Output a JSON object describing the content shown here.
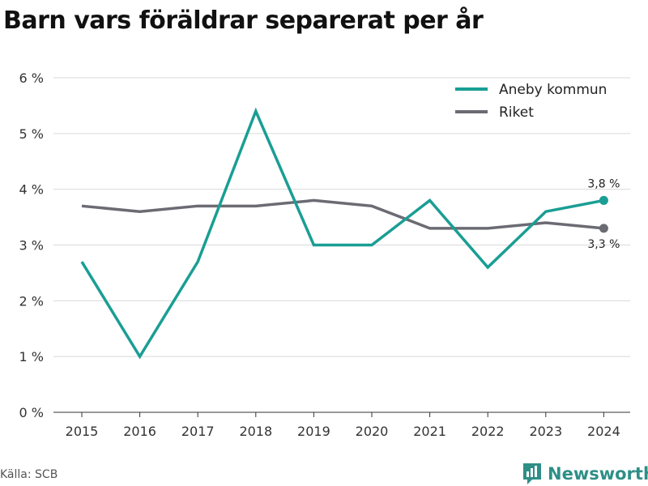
{
  "title": "Barn vars föräldrar separerat per år",
  "source": "Källa: SCB",
  "brand": "Newsworthy",
  "colors": {
    "aneby": "#1a9e94",
    "riket": "#6b6b73",
    "grid": "#d9d9d9",
    "brand": "#2e8f87"
  },
  "chart_data": {
    "type": "line",
    "x": [
      "2015",
      "2016",
      "2017",
      "2018",
      "2019",
      "2020",
      "2021",
      "2022",
      "2023",
      "2024"
    ],
    "ylim": [
      0,
      6
    ],
    "yticks": [
      "0 %",
      "1 %",
      "2 %",
      "3 %",
      "4 %",
      "5 %",
      "6 %"
    ],
    "legend_position": "top-right",
    "grid": true,
    "series": [
      {
        "name": "Aneby kommun",
        "values": [
          2.7,
          1.0,
          2.7,
          5.4,
          3.0,
          3.0,
          3.8,
          2.6,
          3.6,
          3.8
        ],
        "end_label": "3,8 %"
      },
      {
        "name": "Riket",
        "values": [
          3.7,
          3.6,
          3.7,
          3.7,
          3.8,
          3.7,
          3.3,
          3.3,
          3.4,
          3.3
        ],
        "end_label": "3,3 %"
      }
    ]
  }
}
